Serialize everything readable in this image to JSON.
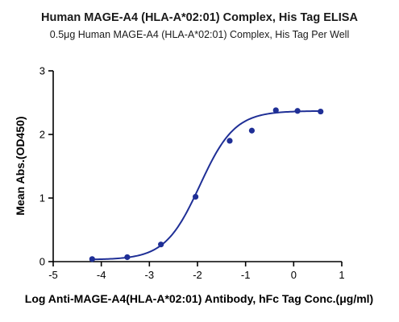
{
  "chart_data": {
    "type": "scatter",
    "title": "Human MAGE-A4 (HLA-A*02:01) Complex, His Tag ELISA",
    "subtitle": "0.5μg Human MAGE-A4 (HLA-A*02:01) Complex, His Tag Per Well",
    "xlabel": "Log Anti-MAGE-A4(HLA-A*02:01) Antibody, hFc Tag Conc.(μg/ml)",
    "ylabel": "Mean Abs.(OD450)",
    "xlim": [
      -5,
      1
    ],
    "ylim": [
      0,
      3
    ],
    "x_ticks": [
      "-5",
      "-4",
      "-3",
      "-2",
      "-1",
      "0",
      "1"
    ],
    "y_ticks": [
      "0",
      "1",
      "2",
      "3"
    ],
    "grid": false,
    "series": [
      {
        "color": "#1f2f96",
        "points": [
          {
            "x": -4.19,
            "y": 0.04
          },
          {
            "x": -3.46,
            "y": 0.07
          },
          {
            "x": -2.76,
            "y": 0.27
          },
          {
            "x": -2.04,
            "y": 1.02
          },
          {
            "x": -1.33,
            "y": 1.9
          },
          {
            "x": -0.87,
            "y": 2.06
          },
          {
            "x": -0.37,
            "y": 2.38
          },
          {
            "x": 0.08,
            "y": 2.37
          },
          {
            "x": 0.56,
            "y": 2.36
          }
        ],
        "fit": {
          "bottom": 0.03,
          "top": 2.37,
          "log_ec50": -1.95,
          "hill_slope": 1.2,
          "x_start": -4.19,
          "x_end": 0.56
        }
      }
    ]
  }
}
